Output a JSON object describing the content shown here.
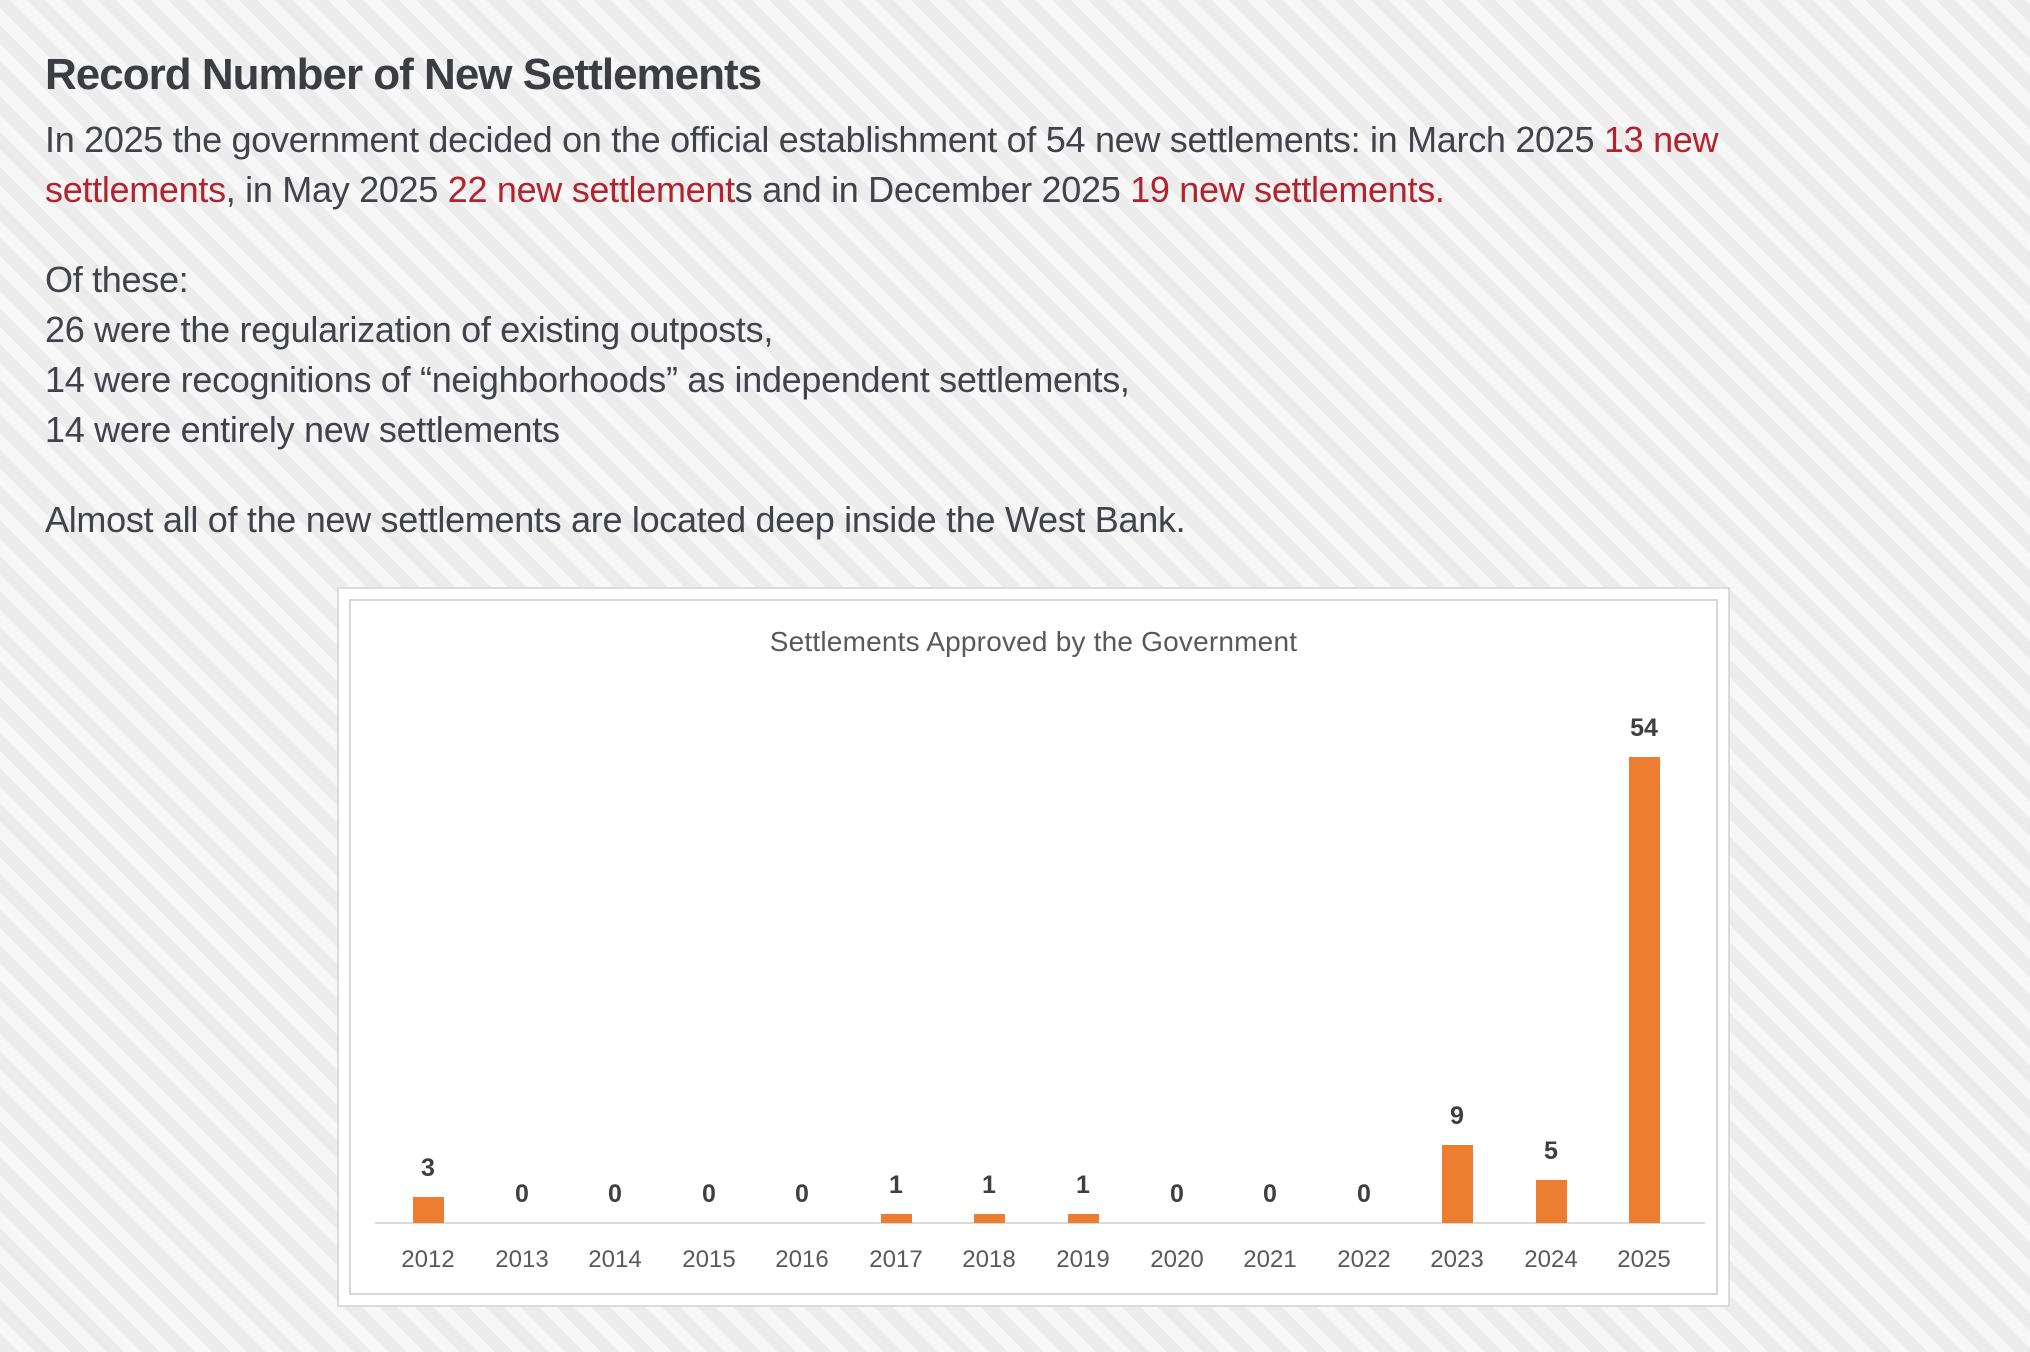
{
  "page": {
    "title": "Record Number of New Settlements"
  },
  "intro": {
    "seg1": "In 2025 the government decided on the official establishment of 54 new settlements: in March 2025 ",
    "seg2_red": "13 new",
    "seg3_red": "settlements",
    "seg4": ", in May 2025 ",
    "seg5_red": "22 new settlement",
    "seg6": "s and in December 2025 ",
    "seg7_red": "19 new settlements."
  },
  "details": {
    "line1": "Of these:",
    "line2": "26 were the regularization of existing outposts,",
    "line3": "14 were recognitions of “neighborhoods” as independent settlements,",
    "line4": "14 were entirely new settlements"
  },
  "note": "Almost all of the new settlements are located deep inside the West Bank.",
  "colors": {
    "accent_red": "#b2232e",
    "bar_orange": "#ED7D31",
    "text_dark": "#414348",
    "chart_gray": "#595959"
  },
  "chart_data": {
    "type": "bar",
    "title": "Settlements Approved by the Government",
    "categories": [
      "2012",
      "2013",
      "2014",
      "2015",
      "2016",
      "2017",
      "2018",
      "2019",
      "2020",
      "2021",
      "2022",
      "2023",
      "2024",
      "2025"
    ],
    "values": [
      3,
      0,
      0,
      0,
      0,
      1,
      1,
      1,
      0,
      0,
      0,
      9,
      5,
      54
    ],
    "bar_color": "#ED7D31",
    "data_labels": true,
    "xlabel": "",
    "ylabel": "",
    "ylim": [
      0,
      54
    ],
    "legend": "none",
    "gridlines": false,
    "label_color": "#3f3f3f",
    "tick_color": "#595959",
    "axis_line_color": "#d9d9d9"
  }
}
